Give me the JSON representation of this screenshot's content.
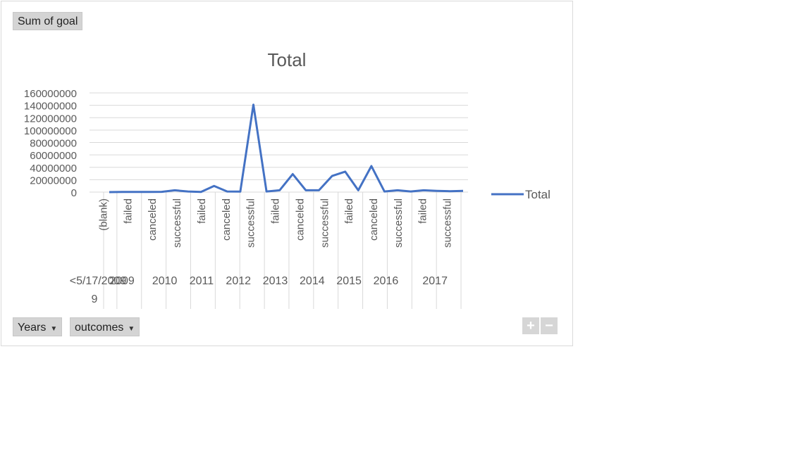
{
  "filter": {
    "sum_label": "Sum of goal"
  },
  "axis_buttons": {
    "years_label": "Years",
    "outcomes_label": "outcomes"
  },
  "zoom": {
    "plus": "+",
    "minus": "−"
  },
  "colors": {
    "series": "#4472c4",
    "grid": "#d9d9d9",
    "text": "#595959",
    "button": "#d4d4d4"
  },
  "chart_data": {
    "type": "line",
    "title": "Total",
    "xlabel": "",
    "ylabel": "",
    "ylim": [
      0,
      160000000
    ],
    "yticks": [
      "160000000",
      "140000000",
      "120000000",
      "100000000",
      "80000000",
      "60000000",
      "40000000",
      "20000000",
      "0"
    ],
    "legend": {
      "entries": [
        "Total"
      ],
      "placement": "right"
    },
    "grid": true,
    "categories": [
      {
        "group": "<5/17/2009",
        "label": "(blank)"
      },
      {
        "group": "2009",
        "label": "failed"
      },
      {
        "group": "2010",
        "label": "canceled"
      },
      {
        "group": "2010",
        "label": "successful"
      },
      {
        "group": "2011",
        "label": "failed"
      },
      {
        "group": "2012",
        "label": "canceled"
      },
      {
        "group": "2012",
        "label": "successful"
      },
      {
        "group": "2013",
        "label": "failed"
      },
      {
        "group": "2014",
        "label": "canceled"
      },
      {
        "group": "2014",
        "label": "successful"
      },
      {
        "group": "2015",
        "label": "failed"
      },
      {
        "group": "2016",
        "label": "canceled"
      },
      {
        "group": "2016",
        "label": "successful"
      },
      {
        "group": "2017",
        "label": "failed"
      },
      {
        "group": "2017",
        "label": "successful"
      }
    ],
    "groups": [
      "<5/17/2009",
      "2009",
      "2010",
      "2011",
      "2012",
      "2013",
      "2014",
      "2015",
      "2016",
      "2017"
    ],
    "series": [
      {
        "name": "Total",
        "x": [
          1,
          2,
          3,
          4,
          5,
          6,
          7,
          8,
          9,
          10,
          11,
          12,
          13,
          14,
          15,
          16,
          17,
          18,
          19,
          20,
          21,
          22,
          23,
          24,
          25,
          26,
          27,
          28
        ],
        "values": [
          0,
          200000,
          300000,
          300000,
          500000,
          3000000,
          1000000,
          300000,
          10000000,
          1000000,
          800000,
          141000000,
          1000000,
          3000000,
          29000000,
          3000000,
          3000000,
          26000000,
          33000000,
          3000000,
          42000000,
          1000000,
          3000000,
          1000000,
          3000000,
          2000000,
          1500000,
          2000000
        ]
      }
    ]
  }
}
